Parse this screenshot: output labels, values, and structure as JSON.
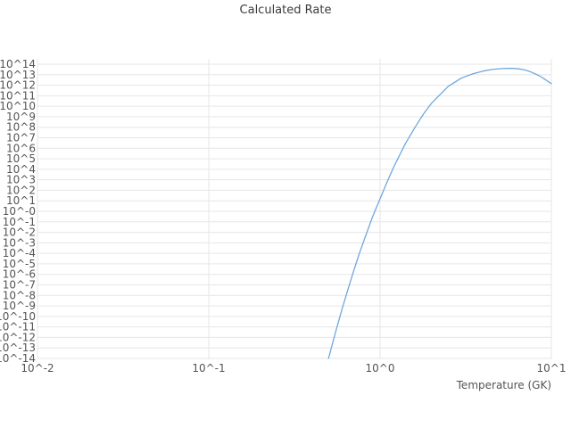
{
  "chart_data": {
    "type": "line",
    "title": "Calculated Rate",
    "xlabel": "Temperature (GK)",
    "ylabel": "",
    "x_scale": "log10",
    "y_scale": "log10",
    "xlog_range": [
      -2,
      1
    ],
    "ylog_range": [
      -14,
      14
    ],
    "grid": true,
    "legend": "none",
    "grid_color": "#e6e6e6",
    "tick_color": "#545454",
    "x_ticks": [
      {
        "log": -2,
        "label": "10^-2"
      },
      {
        "log": -1,
        "label": "10^-1"
      },
      {
        "log": 0,
        "label": "10^0"
      },
      {
        "log": 1,
        "label": "10^1"
      }
    ],
    "y_ticks": [
      {
        "log": 14,
        "label": "10^14"
      },
      {
        "log": 13,
        "label": "10^13"
      },
      {
        "log": 12,
        "label": "10^12"
      },
      {
        "log": 11,
        "label": "10^11"
      },
      {
        "log": 10,
        "label": "10^10"
      },
      {
        "log": 9,
        "label": "10^9"
      },
      {
        "log": 8,
        "label": "10^8"
      },
      {
        "log": 7,
        "label": "10^7"
      },
      {
        "log": 6,
        "label": "10^6"
      },
      {
        "log": 5,
        "label": "10^5"
      },
      {
        "log": 4,
        "label": "10^4"
      },
      {
        "log": 3,
        "label": "10^3"
      },
      {
        "log": 2,
        "label": "10^2"
      },
      {
        "log": 1,
        "label": "10^1"
      },
      {
        "log": 0,
        "label": "10^-0"
      },
      {
        "log": -1,
        "label": "10^-1"
      },
      {
        "log": -2,
        "label": "10^-2"
      },
      {
        "log": -3,
        "label": "10^-3"
      },
      {
        "log": -4,
        "label": "10^-4"
      },
      {
        "log": -5,
        "label": "10^-5"
      },
      {
        "log": -6,
        "label": "10^-6"
      },
      {
        "log": -7,
        "label": "10^-7"
      },
      {
        "log": -8,
        "label": "10^-8"
      },
      {
        "log": -9,
        "label": "10^-9"
      },
      {
        "log": -10,
        "label": "10^-10"
      },
      {
        "log": -11,
        "label": "10^-11"
      },
      {
        "log": -12,
        "label": "10^-12"
      },
      {
        "log": -13,
        "label": "10^-13"
      },
      {
        "log": -14,
        "label": "10^-14"
      }
    ],
    "series": [
      {
        "name": "calculated-rate",
        "color": "#6fa8dc",
        "T_GK": [
          0.5,
          0.55,
          0.6,
          0.65,
          0.7,
          0.75,
          0.8,
          0.9,
          1.0,
          1.1,
          1.2,
          1.4,
          1.6,
          1.8,
          2.0,
          2.5,
          3.0,
          3.5,
          4.0,
          4.5,
          5.0,
          5.5,
          6.0,
          6.5,
          7.0,
          7.5,
          8.0,
          8.5,
          9.0,
          9.5,
          10.0
        ],
        "log10_rate": [
          -14.0,
          -11.5,
          -9.3,
          -7.4,
          -5.7,
          -4.2,
          -2.9,
          -0.6,
          1.2,
          2.8,
          4.2,
          6.4,
          8.0,
          9.3,
          10.3,
          11.9,
          12.7,
          13.1,
          13.35,
          13.5,
          13.57,
          13.6,
          13.6,
          13.55,
          13.45,
          13.3,
          13.1,
          12.9,
          12.65,
          12.4,
          12.15
        ]
      }
    ]
  }
}
